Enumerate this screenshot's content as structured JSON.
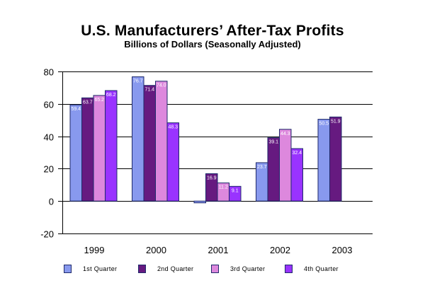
{
  "chart_data": {
    "type": "bar",
    "title": "U.S. Manufacturers’ After-Tax Profits",
    "subtitle": "Billions of Dollars (Seasonally Adjusted)",
    "xlabel": "",
    "ylabel": "",
    "categories": [
      "1999",
      "2000",
      "2001",
      "2002",
      "2003"
    ],
    "ylim": [
      -20,
      80
    ],
    "yticks": [
      80,
      60,
      40,
      20,
      0,
      -20
    ],
    "grid": true,
    "legend_position": "bottom",
    "series": [
      {
        "name": "1st Quarter",
        "color": "#8899ee",
        "values": [
          59.4,
          76.7,
          -1.1,
          23.7,
          50.5
        ],
        "labels": [
          "59.4",
          "76.7",
          "",
          "23.7",
          "50.5"
        ]
      },
      {
        "name": "2nd Quarter",
        "color": "#661a80",
        "values": [
          63.7,
          71.4,
          16.9,
          39.1,
          51.9
        ],
        "labels": [
          "63.7",
          "71.4",
          "16.9",
          "39.1",
          "51.9"
        ]
      },
      {
        "name": "3rd Quarter",
        "color": "#dd88dd",
        "values": [
          65.2,
          74.0,
          11.2,
          44.3,
          null
        ],
        "labels": [
          "65.2",
          "74.0",
          "11.2",
          "44.3",
          ""
        ]
      },
      {
        "name": "4th Quarter",
        "color": "#9933ff",
        "values": [
          68.2,
          48.3,
          9.1,
          32.4,
          null
        ],
        "labels": [
          "68.2",
          "48.3",
          "9.1",
          "32.4",
          ""
        ]
      }
    ]
  }
}
